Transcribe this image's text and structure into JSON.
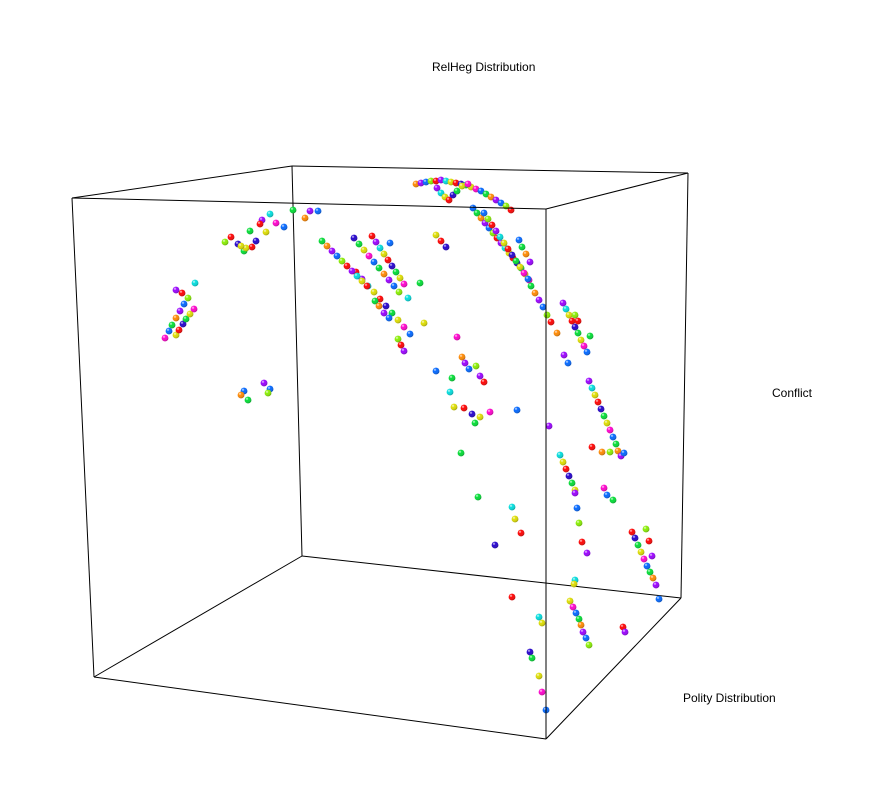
{
  "chart_data": {
    "type": "scatter",
    "projection": "3d",
    "title": "",
    "xlabel": "RelHeg Distribution",
    "ylabel": "Conflict",
    "zlabel": "Polity Distribution",
    "grid": false,
    "legend": "none",
    "palette": [
      "#ff0000",
      "#ff8800",
      "#dddd00",
      "#88ee00",
      "#00dd33",
      "#00dddd",
      "#0066ff",
      "#2200cc",
      "#9900ff",
      "#ff00cc"
    ],
    "points": [
      [
        252,
        247
      ],
      [
        256,
        241
      ],
      [
        244,
        251
      ],
      [
        266,
        232
      ],
      [
        276,
        223
      ],
      [
        284,
        227
      ],
      [
        293,
        210
      ],
      [
        305,
        218
      ],
      [
        310,
        211
      ],
      [
        318,
        211
      ],
      [
        225,
        242
      ],
      [
        231,
        237
      ],
      [
        262,
        220
      ],
      [
        270,
        214
      ],
      [
        246,
        248
      ],
      [
        260,
        224
      ],
      [
        238,
        244
      ],
      [
        250,
        231
      ],
      [
        241,
        246
      ],
      [
        165,
        338
      ],
      [
        169,
        331
      ],
      [
        172,
        325
      ],
      [
        176,
        318
      ],
      [
        180,
        311
      ],
      [
        184,
        304
      ],
      [
        188,
        298
      ],
      [
        182,
        293
      ],
      [
        176,
        290
      ],
      [
        195,
        283
      ],
      [
        176,
        335
      ],
      [
        179,
        330
      ],
      [
        183,
        324
      ],
      [
        186,
        319
      ],
      [
        190,
        314
      ],
      [
        194,
        309
      ],
      [
        244,
        391
      ],
      [
        248,
        400
      ],
      [
        241,
        395
      ],
      [
        264,
        383
      ],
      [
        270,
        389
      ],
      [
        268,
        393
      ],
      [
        356,
        272
      ],
      [
        362,
        279
      ],
      [
        368,
        286
      ],
      [
        374,
        292
      ],
      [
        380,
        299
      ],
      [
        386,
        306
      ],
      [
        392,
        313
      ],
      [
        398,
        320
      ],
      [
        404,
        327
      ],
      [
        410,
        334
      ],
      [
        322,
        241
      ],
      [
        327,
        246
      ],
      [
        332,
        251
      ],
      [
        337,
        256
      ],
      [
        342,
        261
      ],
      [
        347,
        266
      ],
      [
        352,
        271
      ],
      [
        357,
        276
      ],
      [
        362,
        281
      ],
      [
        367,
        286
      ],
      [
        354,
        238
      ],
      [
        359,
        244
      ],
      [
        364,
        250
      ],
      [
        369,
        256
      ],
      [
        374,
        262
      ],
      [
        379,
        268
      ],
      [
        384,
        274
      ],
      [
        389,
        280
      ],
      [
        394,
        286
      ],
      [
        399,
        292
      ],
      [
        372,
        236
      ],
      [
        376,
        242
      ],
      [
        380,
        248
      ],
      [
        384,
        254
      ],
      [
        388,
        260
      ],
      [
        392,
        266
      ],
      [
        396,
        272
      ],
      [
        400,
        278
      ],
      [
        404,
        284
      ],
      [
        390,
        243
      ],
      [
        375,
        301
      ],
      [
        379,
        306
      ],
      [
        384,
        313
      ],
      [
        389,
        318
      ],
      [
        398,
        339
      ],
      [
        401,
        345
      ],
      [
        404,
        351
      ],
      [
        408,
        298
      ],
      [
        436,
        235
      ],
      [
        441,
        241
      ],
      [
        446,
        247
      ],
      [
        420,
        283
      ],
      [
        424,
        323
      ],
      [
        457,
        337
      ],
      [
        436,
        371
      ],
      [
        452,
        378
      ],
      [
        462,
        357
      ],
      [
        465,
        363
      ],
      [
        469,
        369
      ],
      [
        476,
        366
      ],
      [
        484,
        382
      ],
      [
        480,
        376
      ],
      [
        450,
        392
      ],
      [
        454,
        407
      ],
      [
        464,
        408
      ],
      [
        472,
        414
      ],
      [
        475,
        423
      ],
      [
        480,
        417
      ],
      [
        490,
        412
      ],
      [
        517,
        410
      ],
      [
        461,
        453
      ],
      [
        416,
        184
      ],
      [
        421,
        183
      ],
      [
        426,
        182
      ],
      [
        431,
        181
      ],
      [
        436,
        181
      ],
      [
        441,
        180
      ],
      [
        446,
        181
      ],
      [
        451,
        182
      ],
      [
        456,
        183
      ],
      [
        461,
        184
      ],
      [
        466,
        185
      ],
      [
        471,
        187
      ],
      [
        476,
        189
      ],
      [
        481,
        191
      ],
      [
        486,
        194
      ],
      [
        491,
        197
      ],
      [
        496,
        200
      ],
      [
        501,
        203
      ],
      [
        506,
        206
      ],
      [
        511,
        210
      ],
      [
        437,
        188
      ],
      [
        441,
        193
      ],
      [
        445,
        197
      ],
      [
        449,
        200
      ],
      [
        453,
        195
      ],
      [
        457,
        191
      ],
      [
        462,
        186
      ],
      [
        468,
        184
      ],
      [
        473,
        208
      ],
      [
        477,
        213
      ],
      [
        481,
        218
      ],
      [
        485,
        223
      ],
      [
        489,
        228
      ],
      [
        493,
        233
      ],
      [
        497,
        238
      ],
      [
        501,
        243
      ],
      [
        505,
        248
      ],
      [
        509,
        253
      ],
      [
        513,
        258
      ],
      [
        517,
        263
      ],
      [
        521,
        268
      ],
      [
        525,
        274
      ],
      [
        529,
        280
      ],
      [
        519,
        240
      ],
      [
        522,
        247
      ],
      [
        526,
        254
      ],
      [
        530,
        262
      ],
      [
        484,
        213
      ],
      [
        488,
        219
      ],
      [
        492,
        225
      ],
      [
        496,
        231
      ],
      [
        500,
        237
      ],
      [
        504,
        243
      ],
      [
        508,
        249
      ],
      [
        512,
        255
      ],
      [
        516,
        261
      ],
      [
        520,
        267
      ],
      [
        524,
        273
      ],
      [
        528,
        279
      ],
      [
        531,
        286
      ],
      [
        535,
        293
      ],
      [
        539,
        300
      ],
      [
        543,
        307
      ],
      [
        547,
        315
      ],
      [
        551,
        322
      ],
      [
        563,
        303
      ],
      [
        566,
        309
      ],
      [
        569,
        315
      ],
      [
        572,
        321
      ],
      [
        575,
        327
      ],
      [
        578,
        333
      ],
      [
        581,
        340
      ],
      [
        584,
        346
      ],
      [
        587,
        352
      ],
      [
        590,
        336
      ],
      [
        557,
        333
      ],
      [
        564,
        355
      ],
      [
        568,
        363
      ],
      [
        575,
        315
      ],
      [
        578,
        321
      ],
      [
        589,
        381
      ],
      [
        592,
        388
      ],
      [
        595,
        395
      ],
      [
        598,
        402
      ],
      [
        601,
        409
      ],
      [
        604,
        416
      ],
      [
        607,
        423
      ],
      [
        610,
        430
      ],
      [
        613,
        437
      ],
      [
        616,
        444
      ],
      [
        618,
        451
      ],
      [
        621,
        456
      ],
      [
        624,
        453
      ],
      [
        610,
        452
      ],
      [
        592,
        447
      ],
      [
        549,
        426
      ],
      [
        560,
        455
      ],
      [
        563,
        462
      ],
      [
        566,
        469
      ],
      [
        569,
        476
      ],
      [
        572,
        483
      ],
      [
        575,
        490
      ],
      [
        604,
        488
      ],
      [
        607,
        495
      ],
      [
        613,
        500
      ],
      [
        602,
        452
      ],
      [
        575,
        493
      ],
      [
        577,
        508
      ],
      [
        579,
        523
      ],
      [
        582,
        542
      ],
      [
        587,
        553
      ],
      [
        575,
        580
      ],
      [
        574,
        584
      ],
      [
        632,
        532
      ],
      [
        635,
        538
      ],
      [
        638,
        545
      ],
      [
        641,
        552
      ],
      [
        644,
        559
      ],
      [
        647,
        566
      ],
      [
        650,
        572
      ],
      [
        653,
        578
      ],
      [
        656,
        585
      ],
      [
        659,
        599
      ],
      [
        646,
        529
      ],
      [
        649,
        541
      ],
      [
        652,
        556
      ],
      [
        512,
        507
      ],
      [
        515,
        519
      ],
      [
        521,
        533
      ],
      [
        495,
        545
      ],
      [
        478,
        497
      ],
      [
        570,
        601
      ],
      [
        573,
        607
      ],
      [
        576,
        613
      ],
      [
        579,
        619
      ],
      [
        581,
        625
      ],
      [
        583,
        632
      ],
      [
        586,
        638
      ],
      [
        589,
        645
      ],
      [
        623,
        627
      ],
      [
        625,
        632
      ],
      [
        539,
        617
      ],
      [
        542,
        623
      ],
      [
        512,
        597
      ],
      [
        530,
        652
      ],
      [
        532,
        658
      ],
      [
        539,
        676
      ],
      [
        542,
        692
      ],
      [
        546,
        710
      ]
    ]
  }
}
